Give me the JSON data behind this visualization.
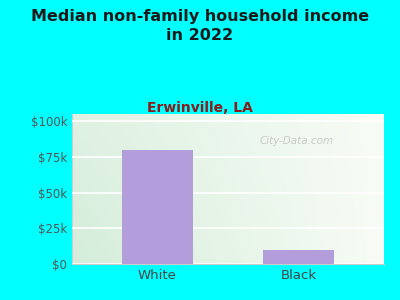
{
  "title": "Median non-family household income\nin 2022",
  "subtitle": "Erwinville, LA",
  "categories": [
    "White",
    "Black"
  ],
  "values": [
    80000,
    10000
  ],
  "bar_color": "#b39ddb",
  "background_color": "#00FFFF",
  "plot_bg_left": "#d4edda",
  "plot_bg_right": "#f0f8f0",
  "plot_bg_top": "#f5f5f0",
  "title_fontsize": 11.5,
  "subtitle_fontsize": 10,
  "tick_fontsize": 8.5,
  "xlabel_fontsize": 9.5,
  "title_color": "#1a1a1a",
  "subtitle_color": "#8b1a1a",
  "tick_color": "#555555",
  "xlabel_color": "#444444",
  "yticks": [
    0,
    25000,
    50000,
    75000,
    100000
  ],
  "ytick_labels": [
    "$0",
    "$25k",
    "$50k",
    "$75k",
    "$100k"
  ],
  "ylim": [
    0,
    105000
  ],
  "watermark": "City-Data.com",
  "watermark_color": "#bbbbbb"
}
